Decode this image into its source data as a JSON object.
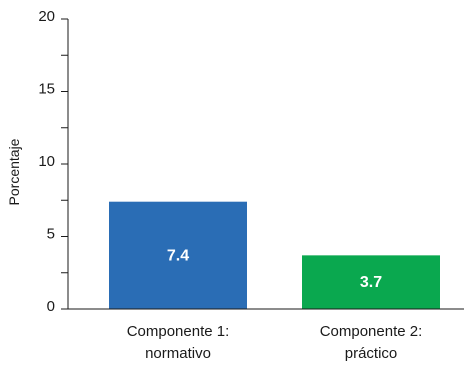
{
  "chart_data": {
    "type": "bar",
    "categories": [
      "Componente 1: normativo",
      "Componente 2: práctico"
    ],
    "category_label_lines": [
      [
        "Componente 1:",
        "normativo"
      ],
      [
        "Componente 2:",
        "práctico"
      ]
    ],
    "values": [
      7.4,
      3.7
    ],
    "data_labels": [
      "7.4",
      "3.7"
    ],
    "bar_colors": [
      "#2a6db5",
      "#0aa84f"
    ],
    "data_label_color": "#ffffff",
    "ylabel": "Porcentaje",
    "xlabel": "",
    "ylim": [
      0,
      20
    ],
    "y_major_ticks": [
      0,
      5,
      10,
      15,
      20
    ],
    "y_minor_ticks": [
      2.5,
      7.5,
      12.5,
      17.5
    ],
    "grid": false,
    "legend": "none"
  }
}
